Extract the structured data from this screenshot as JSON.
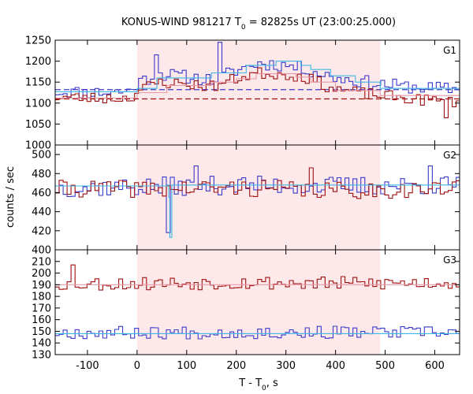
{
  "chart_data": {
    "type": "line",
    "title": "KONUS-WIND 981217 T",
    "title_sub": "0",
    "title_rest": " = 82825s UT (23:00:25.000)",
    "xlabel": "T - T",
    "xlabel_sub": "0",
    "xlabel_rest": ", s",
    "ylabel": "counts / sec",
    "xlim": [
      -165,
      650
    ],
    "xticks": [
      -100,
      0,
      100,
      200,
      300,
      400,
      500,
      600
    ],
    "xtick_labels": [
      "-100",
      "0",
      "100",
      "200",
      "300",
      "400",
      "500",
      "600"
    ],
    "shaded_interval": [
      0,
      490
    ],
    "colors": {
      "blue": "#3b3bcc",
      "red": "#a01010",
      "light_blue": "#3fb6e6",
      "pink": "#e89aa8",
      "shade": "#fde8ea"
    },
    "panels": [
      {
        "label": "G1",
        "ylim": [
          1000,
          1250
        ],
        "yticks": [
          1000,
          1050,
          1100,
          1150,
          1200,
          1250
        ],
        "ytick_labels": [
          "1000",
          "1050",
          "1100",
          "1150",
          "1200",
          "1250"
        ],
        "background_levels": [
          {
            "series": "blue",
            "value": 1132
          },
          {
            "series": "red",
            "value": 1110
          }
        ],
        "series": [
          {
            "key": "blue",
            "anchors": [
              [
                -165,
                1128
              ],
              [
                -100,
                1125
              ],
              [
                -20,
                1128
              ],
              [
                0,
                1150
              ],
              [
                40,
                1170
              ],
              [
                100,
                1162
              ],
              [
                150,
                1155
              ],
              [
                200,
                1180
              ],
              [
                240,
                1195
              ],
              [
                300,
                1190
              ],
              [
                340,
                1180
              ],
              [
                390,
                1162
              ],
              [
                440,
                1153
              ],
              [
                490,
                1145
              ],
              [
                530,
                1140
              ],
              [
                600,
                1135
              ],
              [
                650,
                1133
              ]
            ],
            "noise": 16,
            "seed": 11,
            "steps": [
              [
                40,
                1215
              ],
              [
                170,
                1245
              ]
            ]
          },
          {
            "key": "red",
            "anchors": [
              [
                -165,
                1115
              ],
              [
                -100,
                1112
              ],
              [
                -20,
                1112
              ],
              [
                0,
                1130
              ],
              [
                40,
                1150
              ],
              [
                100,
                1145
              ],
              [
                150,
                1140
              ],
              [
                200,
                1160
              ],
              [
                240,
                1172
              ],
              [
                300,
                1168
              ],
              [
                340,
                1160
              ],
              [
                390,
                1135
              ],
              [
                440,
                1125
              ],
              [
                490,
                1118
              ],
              [
                530,
                1112
              ],
              [
                600,
                1105
              ],
              [
                650,
                1100
              ]
            ],
            "noise": 14,
            "seed": 23,
            "steps": [
              [
                620,
                1065
              ]
            ]
          }
        ],
        "models": [
          {
            "series": "light_blue",
            "steps": [
              [
                -165,
                1127
              ],
              [
                0,
                1135
              ],
              [
                40,
                1160
              ],
              [
                100,
                1160
              ],
              [
                150,
                1172
              ],
              [
                200,
                1172
              ],
              [
                220,
                1190
              ],
              [
                280,
                1200
              ],
              [
                330,
                1190
              ],
              [
                350,
                1180
              ],
              [
                390,
                1165
              ],
              [
                440,
                1150
              ],
              [
                490,
                1135
              ],
              [
                650,
                1130
              ]
            ]
          },
          {
            "series": "pink",
            "steps": [
              [
                -165,
                1112
              ],
              [
                0,
                1125
              ],
              [
                60,
                1142
              ],
              [
                150,
                1150
              ],
              [
                200,
                1158
              ],
              [
                240,
                1170
              ],
              [
                320,
                1162
              ],
              [
                350,
                1150
              ],
              [
                400,
                1130
              ],
              [
                490,
                1118
              ],
              [
                650,
                1110
              ]
            ]
          }
        ]
      },
      {
        "label": "G2",
        "ylim": [
          400,
          510
        ],
        "yticks": [
          400,
          420,
          440,
          460,
          480,
          500
        ],
        "ytick_labels": [
          "400",
          "420",
          "440",
          "460",
          "480",
          "500"
        ],
        "series": [
          {
            "key": "blue",
            "anchors": [
              [
                -165,
                465
              ],
              [
                0,
                466
              ],
              [
                200,
                468
              ],
              [
                400,
                467
              ],
              [
                650,
                468
              ]
            ],
            "noise": 10,
            "seed": 37,
            "steps": [
              [
                65,
                418
              ],
              [
                120,
                488
              ],
              [
                590,
                488
              ]
            ]
          },
          {
            "key": "red",
            "anchors": [
              [
                -165,
                464
              ],
              [
                0,
                464
              ],
              [
                200,
                465
              ],
              [
                400,
                462
              ],
              [
                650,
                464
              ]
            ],
            "noise": 9,
            "seed": 41,
            "steps": [
              [
                350,
                486
              ]
            ]
          }
        ],
        "models": [
          {
            "series": "light_blue",
            "steps": [
              [
                -165,
                467
              ],
              [
                60,
                468
              ],
              [
                64,
                455
              ],
              [
                66,
                413
              ],
              [
                70,
                468
              ],
              [
                650,
                468
              ]
            ]
          }
        ]
      },
      {
        "label": "G3",
        "ylim": [
          130,
          220
        ],
        "yticks": [
          130,
          140,
          150,
          160,
          170,
          180,
          190,
          200,
          210
        ],
        "ytick_labels": [
          "130",
          "140",
          "150",
          "160",
          "170",
          "180",
          "190",
          "200",
          "210"
        ],
        "series": [
          {
            "key": "red",
            "anchors": [
              [
                -165,
                191
              ],
              [
                0,
                191
              ],
              [
                200,
                192
              ],
              [
                400,
                191
              ],
              [
                650,
                192
              ]
            ],
            "noise": 6,
            "seed": 53,
            "steps": [
              [
                -130,
                207
              ]
            ]
          },
          {
            "key": "blue",
            "anchors": [
              [
                -165,
                149
              ],
              [
                0,
                149
              ],
              [
                200,
                149
              ],
              [
                400,
                149
              ],
              [
                650,
                149
              ]
            ],
            "noise": 5.5,
            "seed": 67,
            "steps": []
          }
        ],
        "models": [
          {
            "series": "pink",
            "steps": [
              [
                -165,
                190
              ],
              [
                650,
                190
              ]
            ]
          },
          {
            "series": "light_blue",
            "steps": [
              [
                -165,
                148
              ],
              [
                650,
                148
              ]
            ]
          }
        ]
      }
    ]
  }
}
